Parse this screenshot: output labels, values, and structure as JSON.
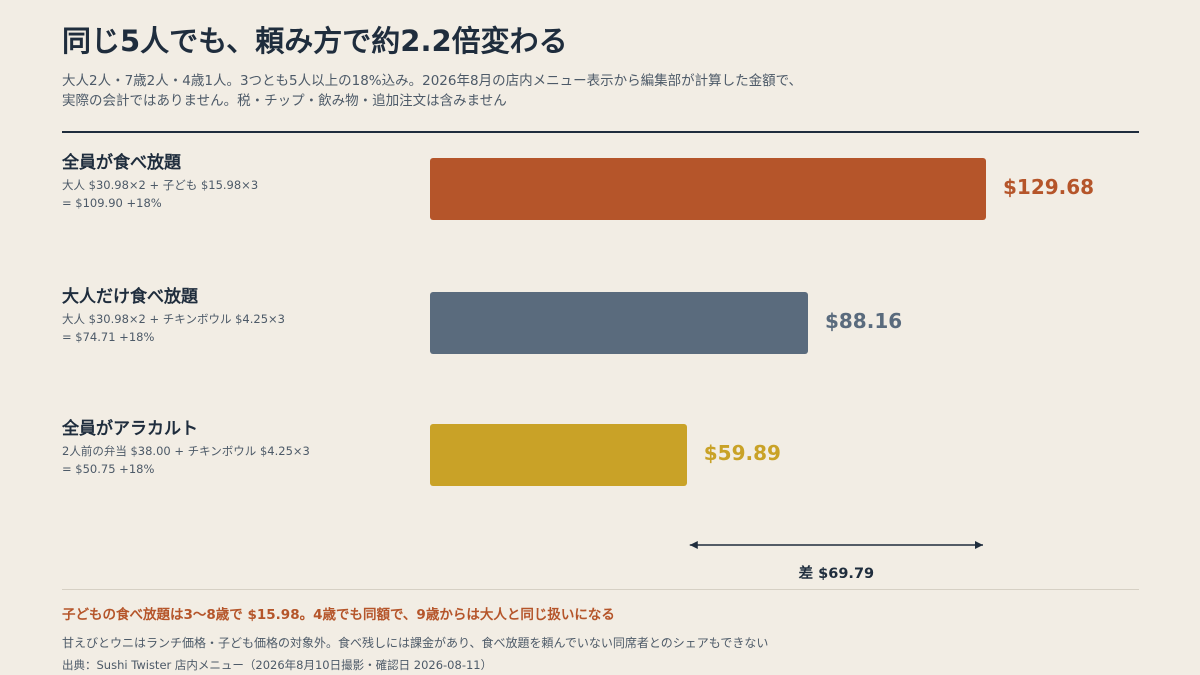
{
  "title": "同じ5人でも、頼み方で約2.2倍変わる",
  "subtitle_lines": [
    "大人2人・7歳2人・4歳1人。3つとも5人以上の18%込み。2026年8月の店内メニュー表示から編集部が計算した金額で、",
    "実際の会計ではありません。税・チップ・飲み物・追加注文は含みません"
  ],
  "chart_data": {
    "type": "bar",
    "orientation": "horizontal",
    "categories": [
      "全員が食べ放題",
      "大人だけ食べ放題",
      "全員がアラカルト"
    ],
    "values": [
      129.68,
      88.16,
      59.89
    ],
    "value_labels": [
      "$129.68",
      "$88.16",
      "$59.89"
    ],
    "notes": [
      [
        "大人 $30.98×2 + 子ども $15.98×3",
        "= $109.90 +18%"
      ],
      [
        "大人 $30.98×2 + チキンボウル $4.25×3",
        "= $74.71 +18%"
      ],
      [
        "2人前の弁当 $38.00 + チキンボウル $4.25×3",
        "= $50.75 +18%"
      ]
    ],
    "colors": [
      "#b5552a",
      "#5a6b7d",
      "#c9a227"
    ],
    "xlim": [
      0,
      129.68
    ],
    "difference": {
      "label": "差 $69.79",
      "from": 59.89,
      "to": 129.68,
      "value": 69.79
    },
    "grid": false,
    "legend": "none"
  },
  "highlight": "子どもの食べ放題は3〜8歳で $15.98。4歳でも同額で、9歳からは大人と同じ扱いになる",
  "footnote": "甘えびとウニはランチ価格・子ども価格の対象外。食べ残しには課金があり、食べ放題を頼んでいない同席者とのシェアもできない",
  "source": "出典：Sushi Twister 店内メニュー（2026年8月10日撮影・確認日 2026-08-11）"
}
